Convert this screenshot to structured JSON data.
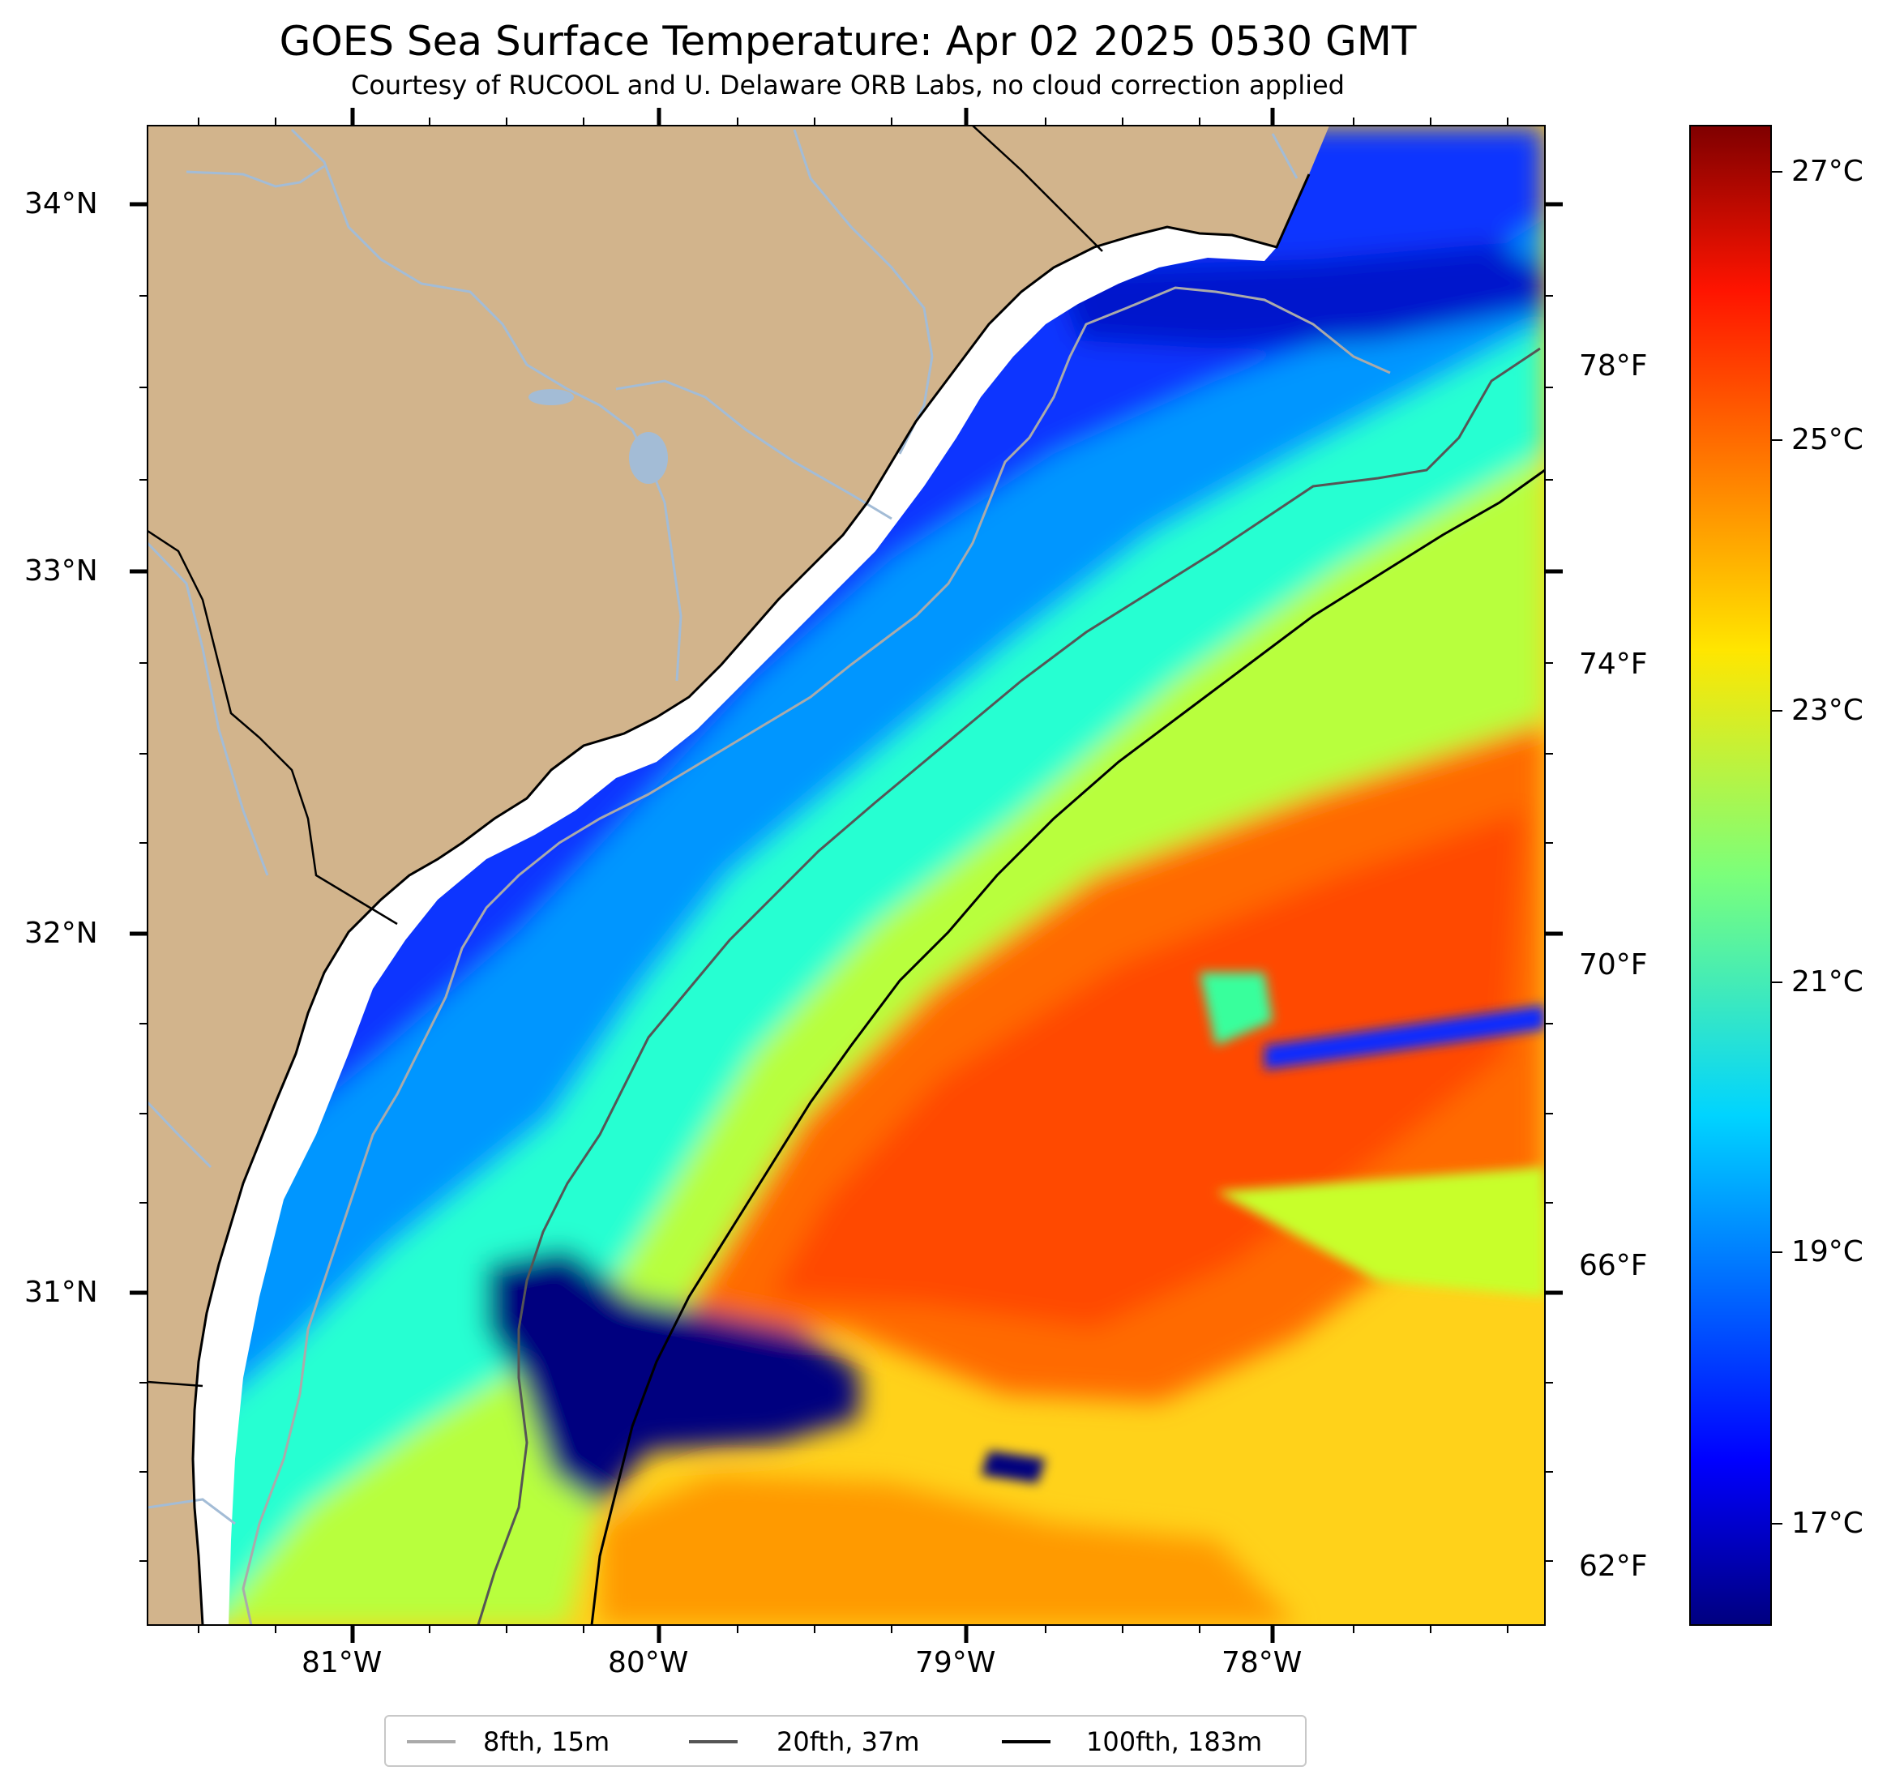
{
  "title": "GOES Sea Surface Temperature: Apr 02 2025 0530 GMT",
  "subtitle": "Courtesy of RUCOOL and U. Delaware ORB Labs, no cloud correction applied",
  "map": {
    "lat_range": [
      30.1,
      34.2
    ],
    "lon_range": [
      -81.66,
      -77.1
    ],
    "lat_ticks": [
      "34°N",
      "33°N",
      "32°N",
      "31°N"
    ],
    "lon_ticks": [
      "81°W",
      "80°W",
      "79°W",
      "78°W"
    ],
    "land_color": "#d2b48c",
    "water_boundary_color": "#a3bcd6"
  },
  "colorbar": {
    "colormap": "jet",
    "range_c": [
      16.5,
      27.5
    ],
    "celsius_ticks": [
      "27°C",
      "25°C",
      "23°C",
      "21°C",
      "19°C",
      "17°C"
    ],
    "fahrenheit_ticks": [
      "78°F",
      "74°F",
      "70°F",
      "66°F",
      "62°F"
    ]
  },
  "legend": [
    {
      "label": "8fth, 15m",
      "color": "#aaaaaa"
    },
    {
      "label": "20fth, 37m",
      "color": "#555555"
    },
    {
      "label": "100fth, 183m",
      "color": "#000000"
    }
  ]
}
